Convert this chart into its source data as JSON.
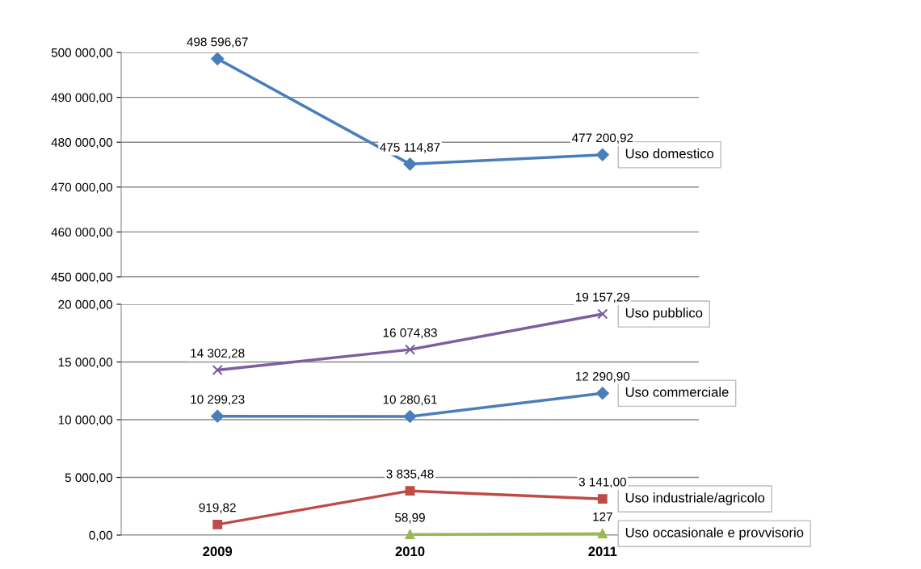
{
  "chart_data": [
    {
      "type": "line",
      "categories": [
        "2009",
        "2010",
        "2011"
      ],
      "ylim": [
        450000,
        500000
      ],
      "yticks": [
        {
          "value": 450000,
          "label": "450 000,00"
        },
        {
          "value": 460000,
          "label": "460 000,00"
        },
        {
          "value": 470000,
          "label": "470 000,00"
        },
        {
          "value": 480000,
          "label": "480 000,00"
        },
        {
          "value": 490000,
          "label": "490 000,00"
        },
        {
          "value": 500000,
          "label": "500 000,00"
        }
      ],
      "grid": "y",
      "tick_labels": "y",
      "legend": false,
      "series": [
        {
          "name": "Uso domestico",
          "color": "#4a7ebb",
          "marker": "diamond",
          "values": [
            498596.67,
            475114.87,
            477200.92
          ],
          "value_labels": [
            "498 596,67",
            "475 114,87",
            "477 200,92"
          ]
        }
      ]
    },
    {
      "type": "line",
      "categories": [
        "2009",
        "2010",
        "2011"
      ],
      "ylim": [
        0,
        20000
      ],
      "yticks": [
        {
          "value": 0,
          "label": "0,00"
        },
        {
          "value": 5000,
          "label": "5 000,00"
        },
        {
          "value": 10000,
          "label": "10 000,00"
        },
        {
          "value": 15000,
          "label": "15 000,00"
        },
        {
          "value": 20000,
          "label": "20 000,00"
        }
      ],
      "grid": "y",
      "legend": false,
      "series": [
        {
          "name": "Uso pubblico",
          "color": "#7d5fa0",
          "marker": "cross",
          "values": [
            14302.28,
            16074.83,
            19157.29
          ],
          "value_labels": [
            "14 302,28",
            "16 074,83",
            "19 157,29"
          ]
        },
        {
          "name": "Uso commerciale",
          "color": "#4a7ebb",
          "marker": "diamond",
          "values": [
            10299.23,
            10280.61,
            12290.9
          ],
          "value_labels": [
            "10 299,23",
            "10 280,61",
            "12 290,90"
          ]
        },
        {
          "name": "Uso industriale/agricolo",
          "color": "#be4b48",
          "marker": "square",
          "values": [
            919.82,
            3835.48,
            3141.0
          ],
          "value_labels": [
            "919,82",
            "3 835,48",
            "3 141,00"
          ]
        },
        {
          "name": "Uso occasionale e provvisorio",
          "color": "#98b954",
          "marker": "triangle",
          "values": [
            null,
            58.99,
            127
          ],
          "value_labels": [
            null,
            "58,99",
            "127"
          ]
        }
      ]
    }
  ]
}
